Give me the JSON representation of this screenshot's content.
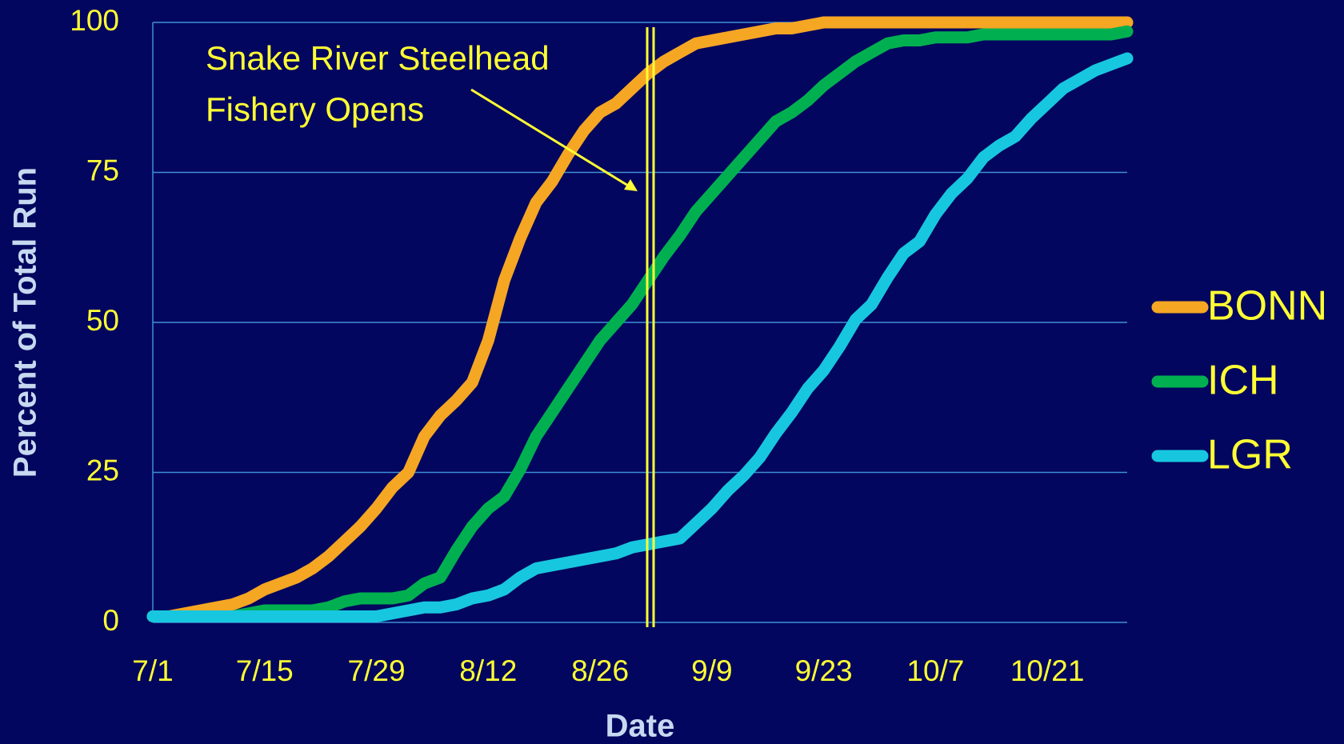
{
  "chart_data": {
    "type": "line",
    "x_label": "Date",
    "y_label": "Percent of Total Run",
    "annotation_lines": [
      "Snake River Steelhead",
      "Fishery Opens"
    ],
    "categories": [
      "7/1",
      null,
      null,
      null,
      null,
      null,
      null,
      "7/15",
      null,
      null,
      null,
      null,
      null,
      null,
      "7/29",
      null,
      null,
      null,
      null,
      null,
      null,
      "8/12",
      null,
      null,
      null,
      null,
      null,
      null,
      "8/26",
      null,
      null,
      null,
      null,
      null,
      null,
      "9/9",
      null,
      null,
      null,
      null,
      null,
      null,
      "9/23",
      null,
      null,
      null,
      null,
      null,
      null,
      "10/7",
      null,
      null,
      null,
      null,
      null,
      null,
      "10/21",
      null,
      null,
      null,
      null,
      null
    ],
    "series": [
      {
        "name": "BONN",
        "color": "#f5a623",
        "values": [
          1,
          1,
          1.5,
          2,
          2.5,
          3,
          4,
          5.5,
          6.5,
          7.5,
          9,
          11,
          13.5,
          16,
          19,
          22.5,
          25,
          31,
          34.5,
          37,
          40,
          47,
          57,
          64,
          70,
          73.5,
          78,
          82,
          85,
          86.5,
          89,
          91.5,
          93.5,
          95,
          96.5,
          97,
          97.5,
          98,
          98.5,
          99,
          99,
          99.5,
          100,
          100,
          100,
          100,
          100,
          100,
          100,
          100,
          100,
          100,
          100,
          100,
          100,
          100,
          100,
          100,
          100,
          100,
          100,
          100
        ]
      },
      {
        "name": "ICH",
        "color": "#00b050",
        "values": [
          1,
          1,
          1,
          1,
          1,
          1,
          1.5,
          2,
          2,
          2,
          2,
          2.5,
          3.5,
          4,
          4,
          4,
          4.5,
          6.5,
          7.5,
          12,
          16,
          19,
          21,
          25.5,
          31,
          35,
          39,
          43,
          47,
          50,
          53,
          57,
          61,
          64.5,
          68.5,
          71.5,
          74.5,
          77.5,
          80.5,
          83.5,
          85,
          87,
          89.5,
          91.5,
          93.5,
          95,
          96.5,
          97,
          97,
          97.5,
          97.5,
          97.5,
          98,
          98,
          98,
          98,
          98,
          98,
          98,
          98,
          98,
          98.5
        ]
      },
      {
        "name": "LGR",
        "color": "#17c7e0",
        "values": [
          1,
          1,
          1,
          1,
          1,
          1,
          1,
          1,
          1,
          1,
          1,
          1,
          1,
          1,
          1,
          1.5,
          2,
          2.5,
          2.5,
          3,
          4,
          4.5,
          5.5,
          7.5,
          9,
          9.5,
          10,
          10.5,
          11,
          11.5,
          12.5,
          13,
          13.5,
          14,
          16.5,
          19,
          22,
          24.5,
          27.5,
          31.5,
          35,
          39,
          42,
          46,
          50.5,
          53,
          57.5,
          61.5,
          63.5,
          68,
          71.5,
          74,
          77.5,
          79.5,
          81,
          84,
          86.5,
          89,
          90.5,
          92,
          93,
          94
        ]
      }
    ],
    "ylim": [
      0,
      100
    ],
    "yticks": [
      0,
      25,
      50,
      75,
      100
    ],
    "grid": true,
    "legend": "right"
  }
}
